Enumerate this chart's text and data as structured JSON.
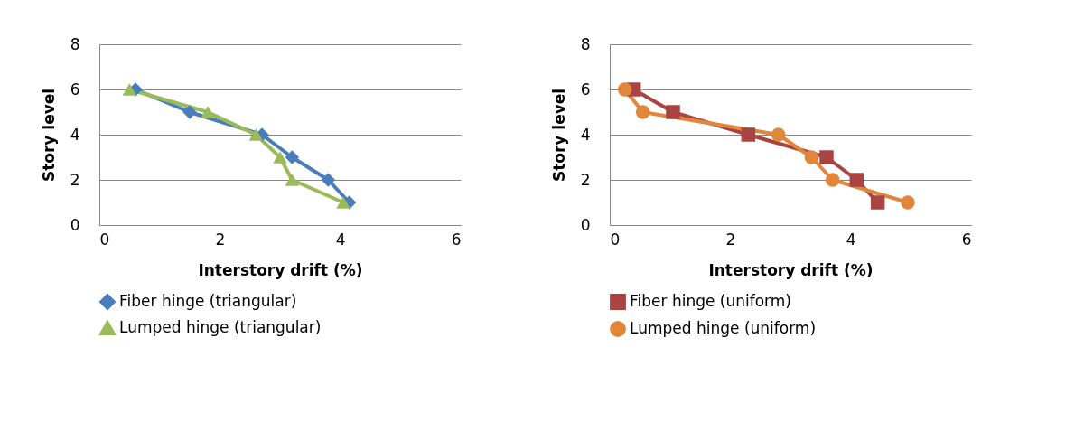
{
  "chart_data": [
    {
      "type": "line",
      "xlabel": "Interstory drift (%)",
      "ylabel": "Story level",
      "xlim": [
        0,
        6
      ],
      "xticks": [
        0,
        2,
        4,
        6
      ],
      "ylim": [
        0,
        8
      ],
      "yticks": [
        0,
        2,
        4,
        6,
        8
      ],
      "grid": "y",
      "legend": "bottom",
      "line_style": "solid",
      "series": [
        {
          "name": "Fiber hinge (triangular)",
          "color": "#4a7ebb",
          "marker": "diamond",
          "x": [
            0.6,
            1.5,
            2.7,
            3.2,
            3.8,
            4.15
          ],
          "values": [
            6,
            5,
            4,
            3,
            2,
            1
          ]
        },
        {
          "name": "Lumped hinge (triangular)",
          "color": "#9bbb59",
          "marker": "triangle",
          "x": [
            0.5,
            1.8,
            2.6,
            3.0,
            3.2,
            4.05
          ],
          "values": [
            6,
            5,
            4,
            3,
            2,
            1
          ]
        }
      ]
    },
    {
      "type": "line",
      "xlabel": "Interstory drift (%)",
      "ylabel": "Story level",
      "xlim": [
        0,
        6
      ],
      "xticks": [
        0,
        2,
        4,
        6
      ],
      "ylim": [
        0,
        8
      ],
      "yticks": [
        0,
        2,
        4,
        6,
        8
      ],
      "grid": "y",
      "legend": "bottom",
      "line_style": "solid",
      "series": [
        {
          "name": "Fiber hinge (uniform)",
          "color": "#a94442",
          "marker": "square",
          "x": [
            0.4,
            1.05,
            2.3,
            3.6,
            4.1,
            4.45
          ],
          "values": [
            6,
            5,
            4,
            3,
            2,
            1
          ]
        },
        {
          "name": "Lumped hinge (uniform)",
          "color": "#e0873c",
          "marker": "circle",
          "x": [
            0.25,
            0.55,
            2.8,
            3.35,
            3.7,
            4.95
          ],
          "values": [
            6,
            5,
            4,
            3,
            2,
            1
          ]
        }
      ]
    }
  ]
}
